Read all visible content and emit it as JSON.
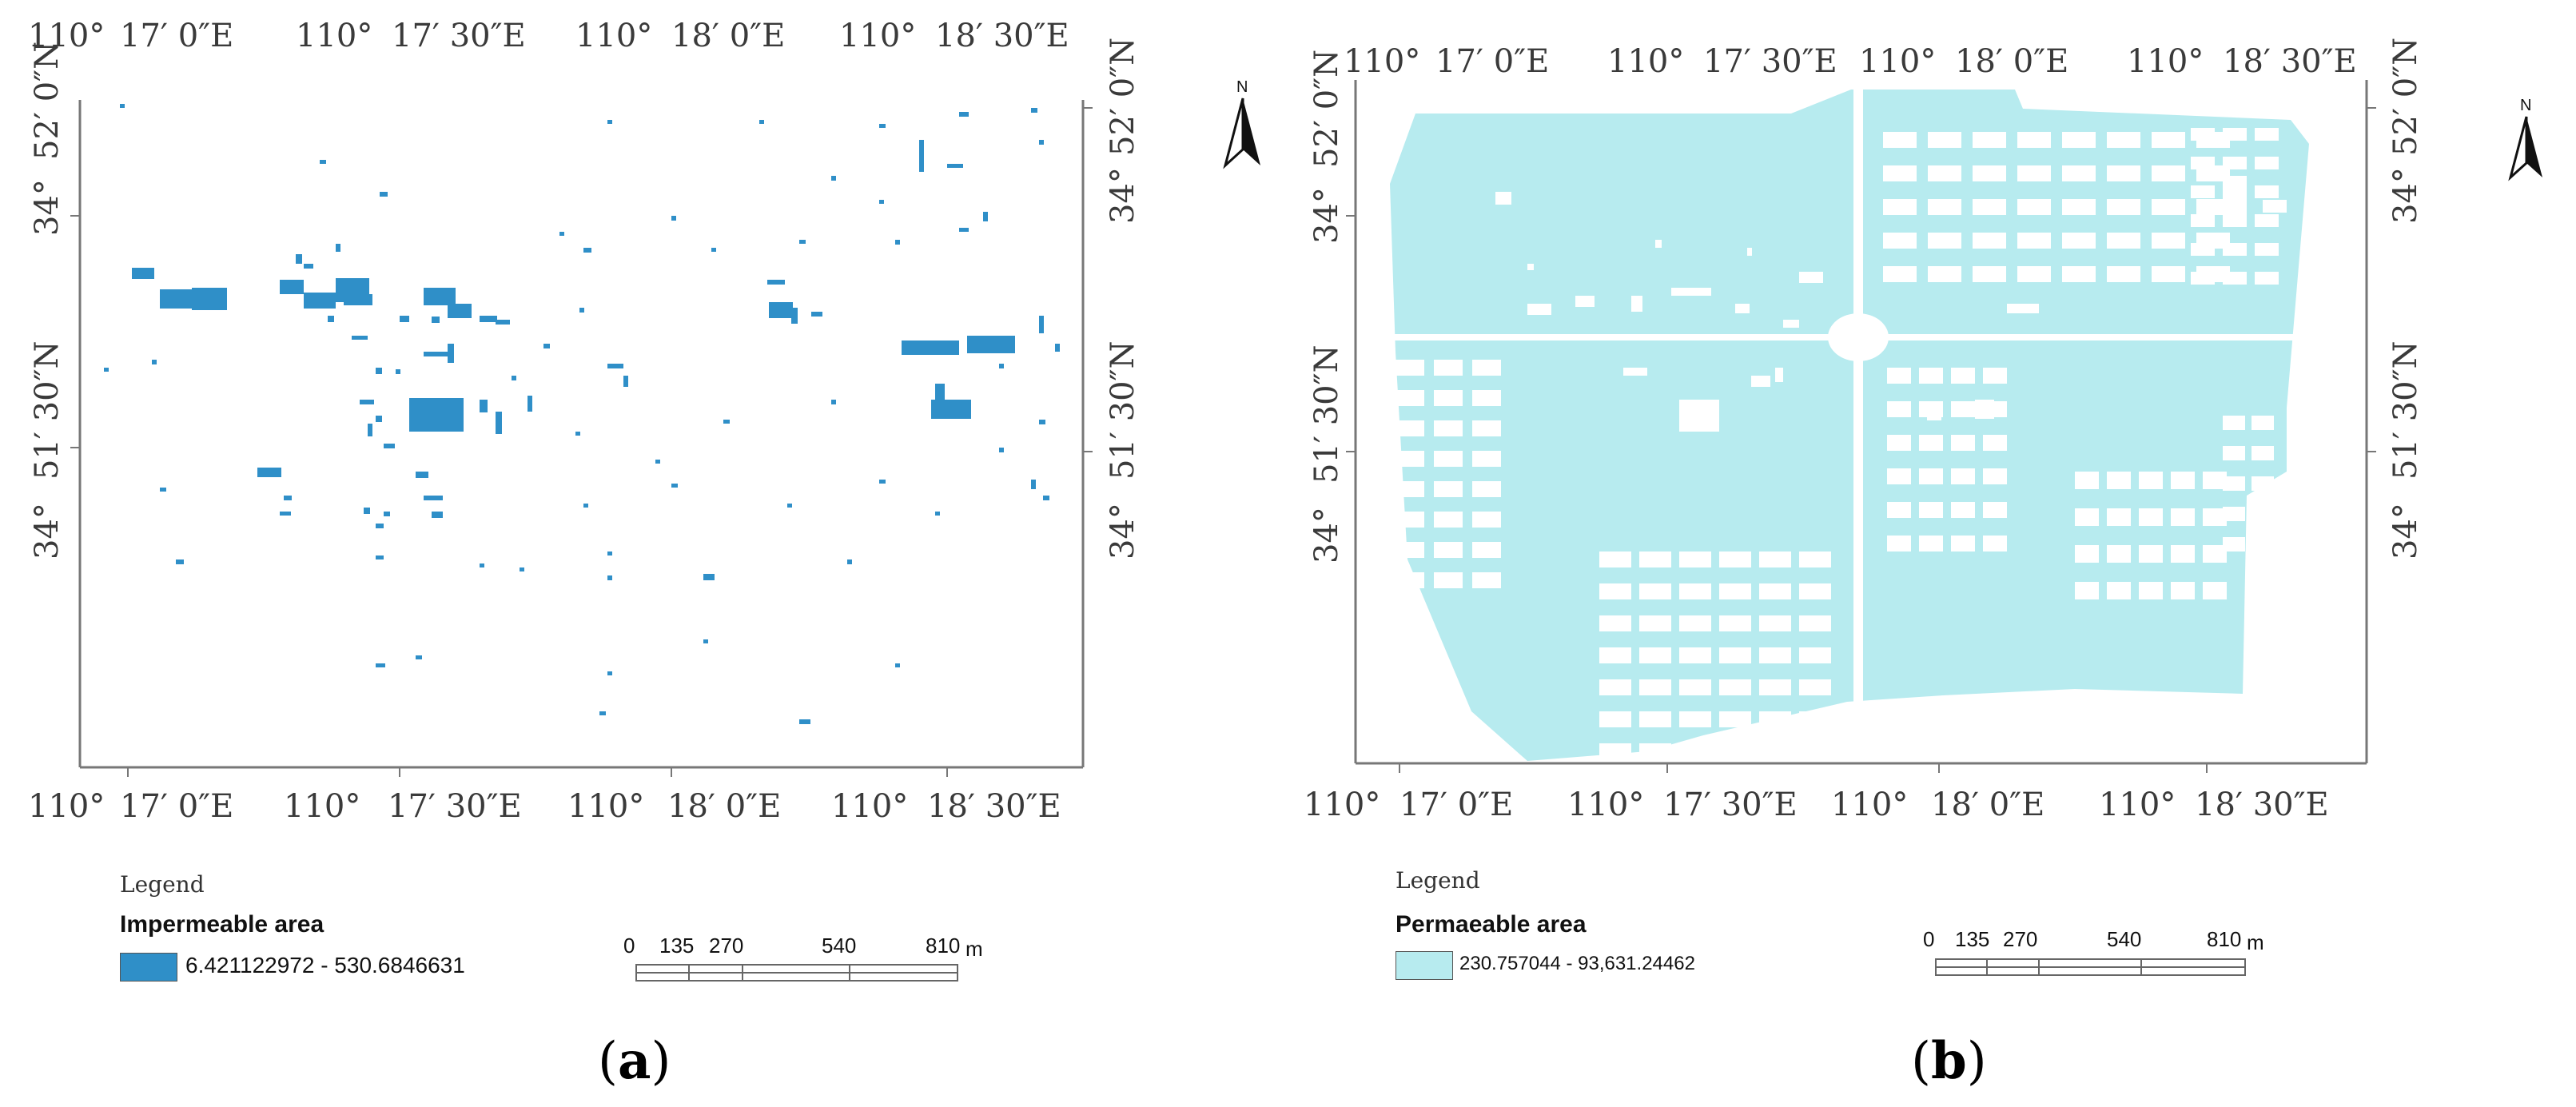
{
  "panels": [
    {
      "id": "a",
      "caption_open": "(",
      "caption_letter": "a",
      "caption_close": ")",
      "legend_title": "Legend",
      "legend_subtitle": "Impermeable area",
      "legend_range": "6.421122972 - 530.6846631",
      "swatch_color": "#2f8fc8",
      "map_type": "impermeable",
      "scale_labels": [
        "0",
        "135",
        "270",
        "540",
        "810"
      ],
      "scale_unit": "m",
      "north_label": "N",
      "top_labels": [
        {
          "deg": "110°",
          "min": "17′ 0″E"
        },
        {
          "deg": "110°",
          "min": "17′ 30″E"
        },
        {
          "deg": "110°",
          "min": "18′ 0″E"
        },
        {
          "deg": "110°",
          "min": "18′ 30″E"
        }
      ],
      "bottom_labels": [
        {
          "deg": "110°",
          "min": "17′ 0″E"
        },
        {
          "deg": "110°",
          "min": "17′ 30″E"
        },
        {
          "deg": "110°",
          "min": "18′ 0″E"
        },
        {
          "deg": "110°",
          "min": "18′ 30″E"
        }
      ],
      "left_labels": [
        {
          "deg": "34°",
          "min": "52′ 0″N"
        },
        {
          "deg": "34°",
          "min": "51′ 30″N"
        }
      ],
      "right_labels": [
        {
          "deg": "34°",
          "min": "52′ 0″N"
        },
        {
          "deg": "34°",
          "min": "51′ 30″N"
        }
      ]
    },
    {
      "id": "b",
      "caption_open": "(",
      "caption_letter": "b",
      "caption_close": ")",
      "legend_title": "Legend",
      "legend_subtitle": "Permaeable area",
      "legend_range": "230.757044 - 93,631.24462",
      "swatch_color": "#b7ebef",
      "map_type": "permeable",
      "scale_labels": [
        "0",
        "135",
        "270",
        "540",
        "810"
      ],
      "scale_unit": "m",
      "north_label": "N",
      "top_labels": [
        {
          "deg": "110°",
          "min": "17′ 0″E"
        },
        {
          "deg": "110°",
          "min": "17′ 30″E"
        },
        {
          "deg": "110°",
          "min": "18′ 0″E"
        },
        {
          "deg": "110°",
          "min": "18′ 30″E"
        }
      ],
      "bottom_labels": [
        {
          "deg": "110°",
          "min": "17′ 0″E"
        },
        {
          "deg": "110°",
          "min": "17′ 30″E"
        },
        {
          "deg": "110°",
          "min": "18′ 0″E"
        },
        {
          "deg": "110°",
          "min": "18′ 30″E"
        }
      ],
      "left_labels": [
        {
          "deg": "34°",
          "min": "52′ 0″N"
        },
        {
          "deg": "34°",
          "min": "51′ 30″N"
        }
      ],
      "right_labels": [
        {
          "deg": "34°",
          "min": "52′ 0″N"
        },
        {
          "deg": "34°",
          "min": "51′ 30″N"
        }
      ]
    }
  ]
}
